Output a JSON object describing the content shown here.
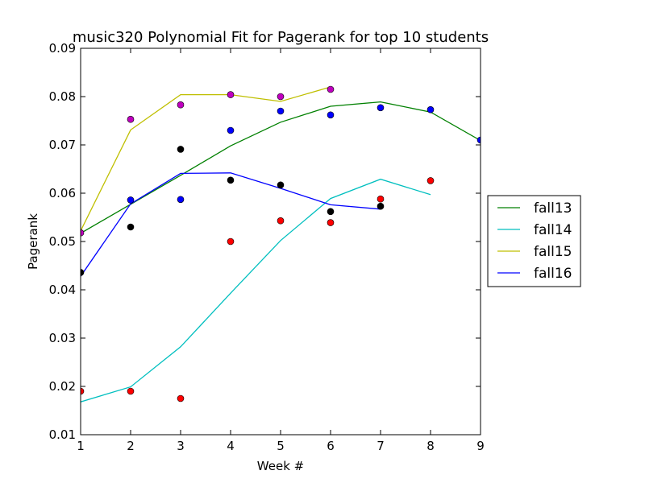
{
  "chart_data": {
    "type": "scatter",
    "title": "music320 Polynomial Fit for Pagerank for top 10 students",
    "xlabel": "Week #",
    "ylabel": "Pagerank",
    "xlim": [
      1,
      9
    ],
    "ylim": [
      0.01,
      0.09
    ],
    "xticks": [
      "1",
      "2",
      "3",
      "4",
      "5",
      "6",
      "7",
      "8",
      "9"
    ],
    "yticks": [
      "0.01",
      "0.02",
      "0.03",
      "0.04",
      "0.05",
      "0.06",
      "0.07",
      "0.08",
      "0.09"
    ],
    "grid": false,
    "legend_position": "right",
    "fit_lines": [
      {
        "name": "fall13",
        "color": "#008000",
        "x": [
          1,
          2,
          3,
          4,
          5,
          6,
          7,
          8,
          9
        ],
        "y": [
          0.0517,
          0.0577,
          0.0637,
          0.0698,
          0.0747,
          0.078,
          0.0789,
          0.0768,
          0.0709
        ]
      },
      {
        "name": "fall14",
        "color": "#00bfbf",
        "x": [
          1,
          2,
          3,
          4,
          5,
          6,
          7,
          8
        ],
        "y": [
          0.0168,
          0.0199,
          0.0282,
          0.0393,
          0.0502,
          0.0589,
          0.0629,
          0.0597
        ]
      },
      {
        "name": "fall15",
        "color": "#bfbf00",
        "x": [
          1,
          2,
          3,
          4,
          5,
          6
        ],
        "y": [
          0.0522,
          0.0731,
          0.0804,
          0.0804,
          0.079,
          0.082
        ]
      },
      {
        "name": "fall16",
        "color": "#0000ff",
        "x": [
          1,
          2,
          3,
          4,
          5,
          6,
          7
        ],
        "y": [
          0.0428,
          0.0578,
          0.0641,
          0.0642,
          0.061,
          0.0576,
          0.0567
        ]
      }
    ],
    "point_sets": [
      {
        "color": "#000000",
        "x": [
          1,
          2,
          3,
          4,
          5,
          6,
          7
        ],
        "y": [
          0.0436,
          0.053,
          0.0691,
          0.0627,
          0.0617,
          0.0562,
          0.0573
        ]
      },
      {
        "color": "#ff0000",
        "x": [
          1,
          2,
          3,
          4,
          5,
          6,
          7,
          8
        ],
        "y": [
          0.019,
          0.019,
          0.0175,
          0.05,
          0.0543,
          0.0539,
          0.0588,
          0.0626
        ]
      },
      {
        "color": "#bf00bf",
        "x": [
          1,
          2,
          3,
          4,
          5,
          6
        ],
        "y": [
          0.0518,
          0.0753,
          0.0783,
          0.0804,
          0.08,
          0.0815
        ]
      },
      {
        "color": "#0000ff",
        "x": [
          2,
          3,
          4,
          5,
          6,
          7,
          8,
          9
        ],
        "y": [
          0.0586,
          0.0587,
          0.073,
          0.077,
          0.0762,
          0.0777,
          0.0773,
          0.071
        ]
      }
    ]
  }
}
